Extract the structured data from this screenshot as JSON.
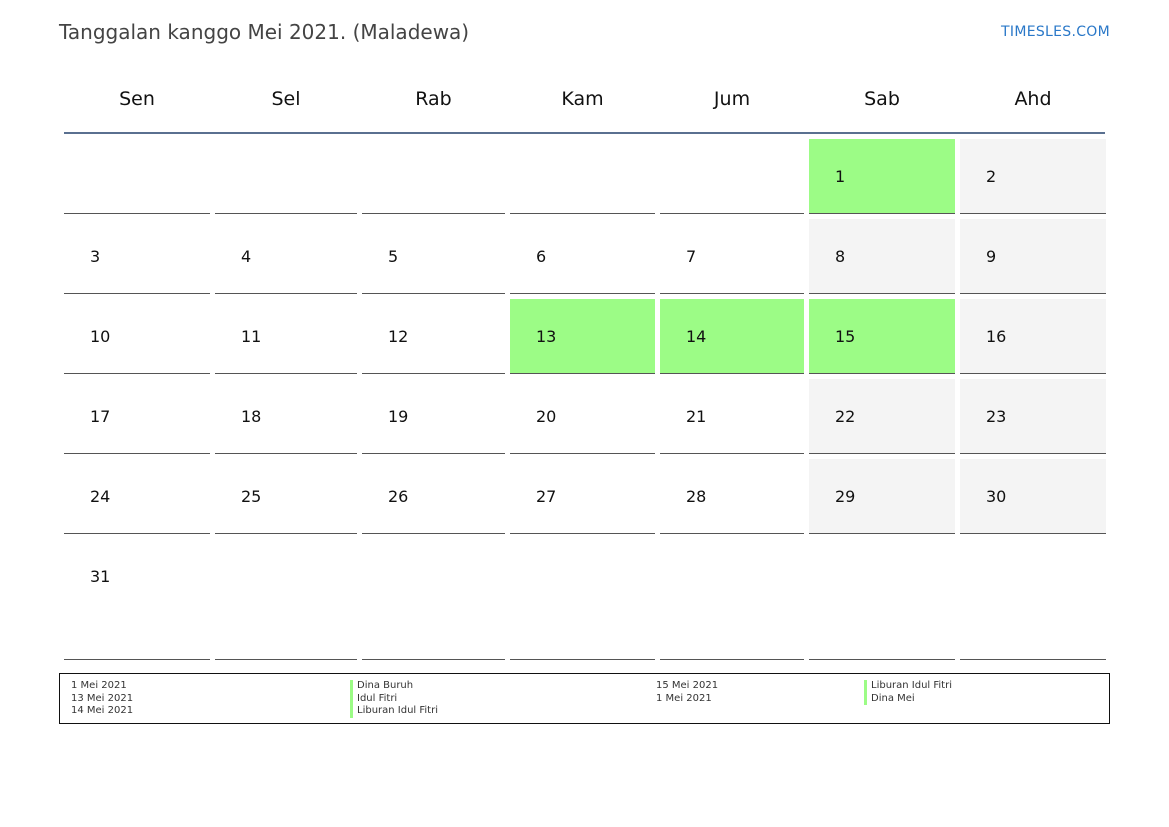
{
  "header": {
    "title": "Tanggalan kanggo Mei 2021. (Maladewa)",
    "brand": "TIMESLES.COM"
  },
  "weekdays": [
    "Sen",
    "Sel",
    "Rab",
    "Kam",
    "Jum",
    "Sab",
    "Ahd"
  ],
  "weeks": [
    [
      "",
      "",
      "",
      "",
      "",
      "1",
      "2"
    ],
    [
      "3",
      "4",
      "5",
      "6",
      "7",
      "8",
      "9"
    ],
    [
      "10",
      "11",
      "12",
      "13",
      "14",
      "15",
      "16"
    ],
    [
      "17",
      "18",
      "19",
      "20",
      "21",
      "22",
      "23"
    ],
    [
      "24",
      "25",
      "26",
      "27",
      "28",
      "29",
      "30"
    ],
    [
      "31",
      "",
      "",
      "",
      "",
      "",
      ""
    ]
  ],
  "holiday_days": [
    "1",
    "13",
    "14",
    "15"
  ],
  "colors": {
    "holiday": "#9cfc86",
    "weekend": "#f4f4f4",
    "brand": "#2a78c8"
  },
  "legend": {
    "left": {
      "dates": [
        "1 Mei 2021",
        "13 Mei 2021",
        "14 Mei 2021"
      ],
      "names": [
        "Dina Buruh",
        "Idul Fitri",
        "Liburan Idul Fitri"
      ]
    },
    "right": {
      "dates": [
        "15 Mei 2021",
        "1 Mei 2021"
      ],
      "names": [
        "Liburan Idul Fitri",
        "Dina Mei"
      ]
    }
  }
}
